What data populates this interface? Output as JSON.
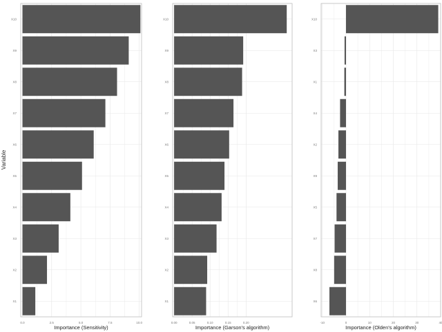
{
  "figure": {
    "ylabel": "Variable"
  },
  "colors": {
    "bar": "#555555",
    "grid": "#e6e6e6",
    "panel_border": "#bdbdbd",
    "background": "#ffffff"
  },
  "chart_data": [
    {
      "type": "bar",
      "orientation": "horizontal",
      "xlabel": "Importance (Sensitivity)",
      "ylabel": "Variable",
      "categories": [
        "X1",
        "X2",
        "X3",
        "X4",
        "X5",
        "X6",
        "X7",
        "X8",
        "X9",
        "X10"
      ],
      "values": [
        1.1,
        2.1,
        3.1,
        4.1,
        5.1,
        6.1,
        7.1,
        8.1,
        9.1,
        10.1
      ],
      "xlim": [
        -0.15,
        10.2
      ],
      "xticks": [
        0.0,
        2.5,
        5.0,
        7.5,
        10.0
      ],
      "xtick_labels": [
        "0.0",
        "2.5",
        "5.0",
        "7.5",
        "10.0"
      ],
      "grid": true,
      "legend": "none"
    },
    {
      "type": "bar",
      "orientation": "horizontal",
      "xlabel": "Importance (Garson's algorithm)",
      "categories": [
        "X1",
        "X2",
        "X3",
        "X4",
        "X5",
        "X6",
        "X7",
        "X8",
        "X9",
        "X10"
      ],
      "values": [
        0.089,
        0.092,
        0.118,
        0.132,
        0.14,
        0.153,
        0.165,
        0.189,
        0.192,
        0.313
      ],
      "xlim": [
        -0.004,
        0.328
      ],
      "xticks": [
        0.0,
        0.05,
        0.1,
        0.15,
        0.2
      ],
      "xtick_labels": [
        "0.00",
        "0.05",
        "0.10",
        "0.15",
        "0.20"
      ],
      "grid": true,
      "legend": "none"
    },
    {
      "type": "bar",
      "orientation": "horizontal",
      "xlabel": "Importance (Olden's algorithm)",
      "categories": [
        "X6",
        "X8",
        "X7",
        "X5",
        "X9",
        "X2",
        "X4",
        "X1",
        "X3",
        "X10"
      ],
      "values": [
        -7,
        -5,
        -4.8,
        -4,
        -3.5,
        -3.2,
        -2.5,
        -0.7,
        -0.6,
        39
      ],
      "xlim": [
        -10.5,
        40
      ],
      "xticks": [
        -10,
        0,
        10,
        20,
        30,
        40
      ],
      "xtick_labels": [
        "-10",
        "0",
        "10",
        "20",
        "30",
        "40"
      ],
      "grid": true,
      "legend": "none"
    }
  ]
}
